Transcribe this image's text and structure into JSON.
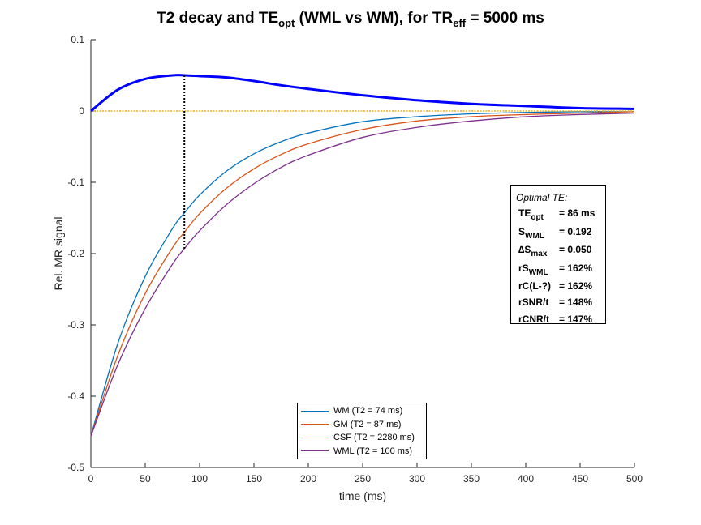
{
  "title": {
    "main": "T2 decay and TE",
    "sub1": "opt",
    "mid": " (WML vs WM), for TR",
    "sub2": "eff",
    "end": " = 5000 ms"
  },
  "info_box": {
    "heading": "Optimal TE:",
    "rows": [
      {
        "label": "TE",
        "sub": "opt",
        "value": "= 86 ms"
      },
      {
        "label": "S",
        "sub": "WML",
        "value": "= 0.192"
      },
      {
        "label": "∆S",
        "sub": "max",
        "value": "= 0.050"
      },
      {
        "label": "rS",
        "sub": "WML",
        "value": "= 162%"
      },
      {
        "label": "rC(L-?)",
        "sub": "",
        "value": "= 162%"
      },
      {
        "label": "rSNR/t",
        "sub": "",
        "value": "= 148%"
      },
      {
        "label": "rCNR/t",
        "sub": "",
        "value": "= 147%"
      }
    ]
  },
  "chart_data": {
    "type": "line",
    "xlabel": "time (ms)",
    "ylabel": "Rel. MR signal",
    "xlim": [
      0,
      500
    ],
    "ylim": [
      -0.5,
      0.1
    ],
    "xticks": [
      0,
      50,
      100,
      150,
      200,
      250,
      300,
      350,
      400,
      450,
      500
    ],
    "yticks": [
      -0.5,
      -0.4,
      -0.3,
      -0.2,
      -0.1,
      0,
      0.1
    ],
    "ytick_labels": [
      "-0.5",
      "-0.4",
      "-0.3",
      "-0.2",
      "-0.1",
      "0",
      "0.1"
    ],
    "grid": false,
    "legend_position": "bottom-center",
    "x": [
      0,
      25,
      50,
      75,
      86,
      100,
      125,
      150,
      175,
      200,
      250,
      300,
      350,
      400,
      450,
      500
    ],
    "series": [
      {
        "name": "WM  (T2 = 74 ms)",
        "color": "#0072BD",
        "values": [
          -0.456,
          -0.325,
          -0.232,
          -0.165,
          -0.143,
          -0.118,
          -0.084,
          -0.06,
          -0.043,
          -0.031,
          -0.015,
          -0.008,
          -0.004,
          -0.002,
          -0.001,
          -0.001
        ]
      },
      {
        "name": "GM  (T2 = 87 ms)",
        "color": "#D95319",
        "values": [
          -0.456,
          -0.342,
          -0.256,
          -0.192,
          -0.17,
          -0.144,
          -0.108,
          -0.081,
          -0.061,
          -0.046,
          -0.026,
          -0.014,
          -0.008,
          -0.005,
          -0.003,
          -0.001
        ]
      },
      {
        "name": "CSF (T2 = 2280 ms)",
        "color": "#EDB120",
        "values": [
          0,
          0,
          0,
          0,
          0,
          0,
          0,
          0,
          0,
          0,
          0,
          0,
          0,
          0,
          0,
          0
        ]
      },
      {
        "name": "WML (T2 = 100 ms)",
        "color": "#7E2F8E",
        "values": [
          -0.456,
          -0.355,
          -0.277,
          -0.215,
          -0.193,
          -0.168,
          -0.131,
          -0.102,
          -0.079,
          -0.062,
          -0.037,
          -0.023,
          -0.014,
          -0.008,
          -0.005,
          -0.003
        ]
      },
      {
        "name": "",
        "color": "#0000FF",
        "values": [
          0,
          0.03,
          0.045,
          0.05,
          0.05,
          0.049,
          0.047,
          0.042,
          0.036,
          0.031,
          0.022,
          0.015,
          0.01,
          0.007,
          0.004,
          0.003
        ]
      }
    ],
    "optimal_te_marker": {
      "x": 86,
      "y_top": 0.05,
      "y_bottom": -0.193
    }
  }
}
